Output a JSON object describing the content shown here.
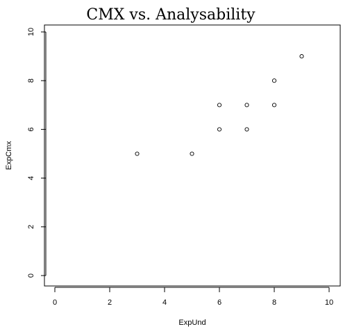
{
  "chart_data": {
    "type": "scatter",
    "title": "CMX vs. Analysability",
    "xlabel": "ExpUnd",
    "ylabel": "ExpCmx",
    "xlim": [
      0,
      10
    ],
    "ylim": [
      0,
      10
    ],
    "xticks": [
      "0",
      "2",
      "4",
      "6",
      "8",
      "10"
    ],
    "yticks": [
      "0",
      "2",
      "4",
      "6",
      "8",
      "10"
    ],
    "grid": false,
    "points": [
      {
        "x": 3,
        "y": 5
      },
      {
        "x": 5,
        "y": 5
      },
      {
        "x": 6,
        "y": 6
      },
      {
        "x": 6,
        "y": 7
      },
      {
        "x": 7,
        "y": 6
      },
      {
        "x": 7,
        "y": 7
      },
      {
        "x": 8,
        "y": 7
      },
      {
        "x": 8,
        "y": 8
      },
      {
        "x": 9,
        "y": 9
      }
    ]
  }
}
